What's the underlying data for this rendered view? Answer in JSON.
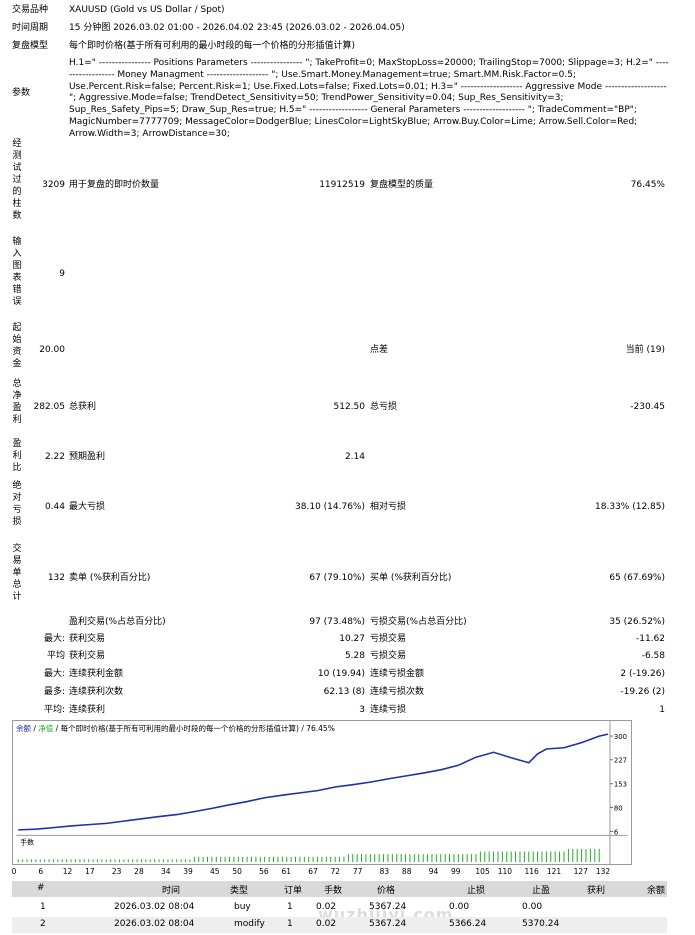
{
  "header": {
    "symbol_label": "交易品种",
    "symbol_value": "XAUUSD (Gold vs US Dollar / Spot)",
    "period_label": "时间周期",
    "period_value": "15 分钟图 2026.03.02 01:00 - 2026.04.02 23:45 (2026.03.02 - 2026.04.05)",
    "model_label": "复盘模型",
    "model_value": "每个即时价格(基于所有可利用的最小时段的每一个价格的分形插值计算)",
    "params_label": "参数",
    "params_value": "H.1=\" ---------------- Positions Parameters ---------------- \"; TakeProfit=0; MaxStopLoss=20000; TrailingStop=7000; Slippage=3; H.2=\" ------------------ Money Managment ------------------- \"; Use.Smart.Money.Management=true; Smart.MM.Risk.Factor=0.5; Use.Percent.Risk=false; Percent.Risk=1; Use.Fixed.Lots=false; Fixed.Lots=0.01; H.3=\" ------------------- Aggressive Mode ------------------- \"; Aggressive.Mode=false; TrendDetect_Sensitivity=50; TrendPower_Sensitivity=0.04; Sup_Res_Sensitivity=3; Sup_Res_Safety_Pips=5; Draw_Sup_Res=true; H.5=\" ------------------ General Parameters ------------------- \"; TradeComment=\"BP\"; MagicNumber=7777709; MessageColor=DodgerBlue; LinesColor=LightSkyBlue; Arrow.Buy.Color=Lime; Arrow.Sell.Color=Red; Arrow.Width=3; ArrowDistance=30;"
  },
  "stats": {
    "bars_label": "经测试过的柱数",
    "bars_value": "3209",
    "ticks_label": "用于复盘的即时价数量",
    "ticks_value": "11912519",
    "quality_label": "复盘模型的质量",
    "quality_value": "76.45%",
    "errors_label": "输入图表错误",
    "errors_value": "9",
    "deposit_label": "起始资金",
    "deposit_value": "20.00",
    "spread_label": "点差",
    "spread_value": "当前 (19)",
    "net_label": "总净盈利",
    "net_value": "282.05",
    "gross_profit_label": "总获利",
    "gross_profit_value": "512.50",
    "gross_loss_label": "总亏损",
    "gross_loss_value": "-230.45",
    "pf_label": "盈利比",
    "pf_value": "2.22",
    "expected_label": "预期盈利",
    "expected_value": "2.14",
    "abs_dd_label": "绝对亏损",
    "abs_dd_value": "0.44",
    "max_dd_label": "最大亏损",
    "max_dd_value": "38.10 (14.76%)",
    "rel_dd_label": "相对亏损",
    "rel_dd_value": "18.33% (12.85)",
    "total_trades_label": "交易单总计",
    "total_trades_value": "132",
    "short_label": "卖单 (%获利百分比)",
    "short_value": "67 (79.10%)",
    "long_label": "买单 (%获利百分比)",
    "long_value": "65 (67.69%)",
    "profit_trades_label": "盈利交易(%占总百分比)",
    "profit_trades_value": "97 (73.48%)",
    "loss_trades_label": "亏损交易(%占总百分比)",
    "loss_trades_value": "35 (26.52%)",
    "largest_prefix": "最大:",
    "largest_profit_label": "获利交易",
    "largest_profit_value": "10.27",
    "largest_loss_label": "亏损交易",
    "largest_loss_value": "-11.62",
    "average_prefix": "平均",
    "average_profit_label": "获利交易",
    "average_profit_value": "5.28",
    "average_loss_label": "亏损交易",
    "average_loss_value": "-6.58",
    "max_prefix": "最大:",
    "max_consec_wins_label": "连续获利金额",
    "max_consec_wins_value": "10 (19.94)",
    "max_consec_losses_label": "连续亏损金额",
    "max_consec_losses_value": "2 (-19.26)",
    "most_prefix": "最多:",
    "most_consec_profit_label": "连续获利次数",
    "most_consec_profit_value": "62.13 (8)",
    "most_consec_loss_label": "连续亏损次数",
    "most_consec_loss_value": "-19.26 (2)",
    "avg2_prefix": "平均:",
    "avg_consec_wins_label": "连续获利",
    "avg_consec_wins_value": "3",
    "avg_consec_losses_label": "连续亏损",
    "avg_consec_losses_value": "1"
  },
  "chart": {
    "legend_balance": "余额",
    "legend_sep1": " / ",
    "legend_equity": "净值",
    "legend_rest": " / 每个即时价格(基于所有可利用的最小时段的每一个价格的分形插值计算) / 76.45%",
    "lots_label": "手数",
    "colors": {
      "balance": "#1f2fa8",
      "equity": "#22aa22",
      "lots": "#22aa22"
    }
  },
  "chart_data": {
    "type": "line",
    "title": "",
    "x_ticks": [
      "0",
      "6",
      "12",
      "17",
      "23",
      "28",
      "34",
      "39",
      "45",
      "50",
      "56",
      "61",
      "67",
      "72",
      "77",
      "83",
      "88",
      "94",
      "99",
      "105",
      "110",
      "116",
      "121",
      "127",
      "132"
    ],
    "y_ticks": [
      "300",
      "227",
      "153",
      "80",
      "6"
    ],
    "ylim": [
      6,
      310
    ],
    "xlim": [
      0,
      134
    ],
    "series": [
      {
        "name": "余额",
        "x": [
          0,
          4,
          8,
          12,
          16,
          20,
          24,
          28,
          32,
          36,
          40,
          44,
          48,
          52,
          56,
          60,
          64,
          68,
          72,
          76,
          80,
          84,
          88,
          92,
          96,
          100,
          104,
          108,
          112,
          116,
          118,
          120,
          124,
          128,
          132,
          134
        ],
        "values": [
          11,
          13,
          18,
          23,
          27,
          31,
          38,
          45,
          52,
          58,
          67,
          77,
          88,
          98,
          110,
          118,
          125,
          132,
          143,
          150,
          158,
          168,
          177,
          186,
          196,
          210,
          235,
          250,
          233,
          218,
          245,
          260,
          264,
          280,
          300,
          306
        ]
      },
      {
        "name": "lots",
        "x": [
          0,
          5,
          10,
          15,
          20,
          25,
          30,
          35,
          40,
          45,
          50,
          55,
          60,
          65,
          70,
          75,
          80,
          85,
          90,
          95,
          100,
          105,
          110,
          115,
          120,
          125,
          130,
          134
        ],
        "values": [
          1,
          1,
          1,
          1,
          1,
          1,
          1,
          1,
          2,
          2,
          2,
          2,
          2,
          2,
          2,
          3,
          3,
          3,
          3,
          3,
          3,
          4,
          4,
          4,
          4,
          5,
          5,
          6
        ]
      }
    ]
  },
  "trades": {
    "columns": [
      "#",
      "时间",
      "类型",
      "订单",
      "手数",
      "价格",
      "止损",
      "止盈",
      "获利",
      "余额"
    ],
    "rows": [
      [
        "1",
        "2026.03.02 08:04",
        "buy",
        "1",
        "0.02",
        "5367.24",
        "0.00",
        "0.00",
        "",
        ""
      ],
      [
        "2",
        "2026.03.02 08:04",
        "modify",
        "1",
        "0.02",
        "5367.24",
        "5366.24",
        "5370.24",
        "",
        ""
      ]
    ]
  },
  "watermark": "wuzhijiyi.com"
}
